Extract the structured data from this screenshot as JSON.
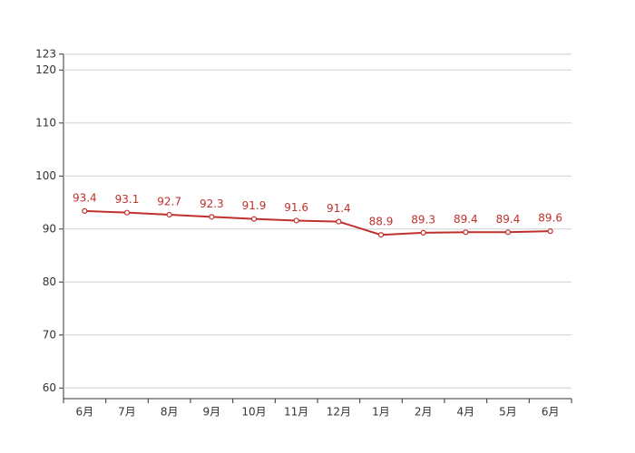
{
  "chart_data": {
    "type": "line",
    "categories": [
      "6月",
      "7月",
      "8月",
      "9月",
      "10月",
      "11月",
      "12月",
      "1月",
      "2月",
      "4月",
      "5月",
      "6月"
    ],
    "series": [
      {
        "color": "#c0302b",
        "values": [
          93.4,
          93.1,
          92.7,
          92.3,
          91.9,
          91.6,
          91.4,
          88.9,
          89.3,
          89.4,
          89.4,
          89.6
        ]
      }
    ],
    "ylim": [
      58,
      123
    ],
    "yticks": [
      60,
      70,
      80,
      90,
      100,
      110,
      120,
      123
    ],
    "grid": true
  }
}
